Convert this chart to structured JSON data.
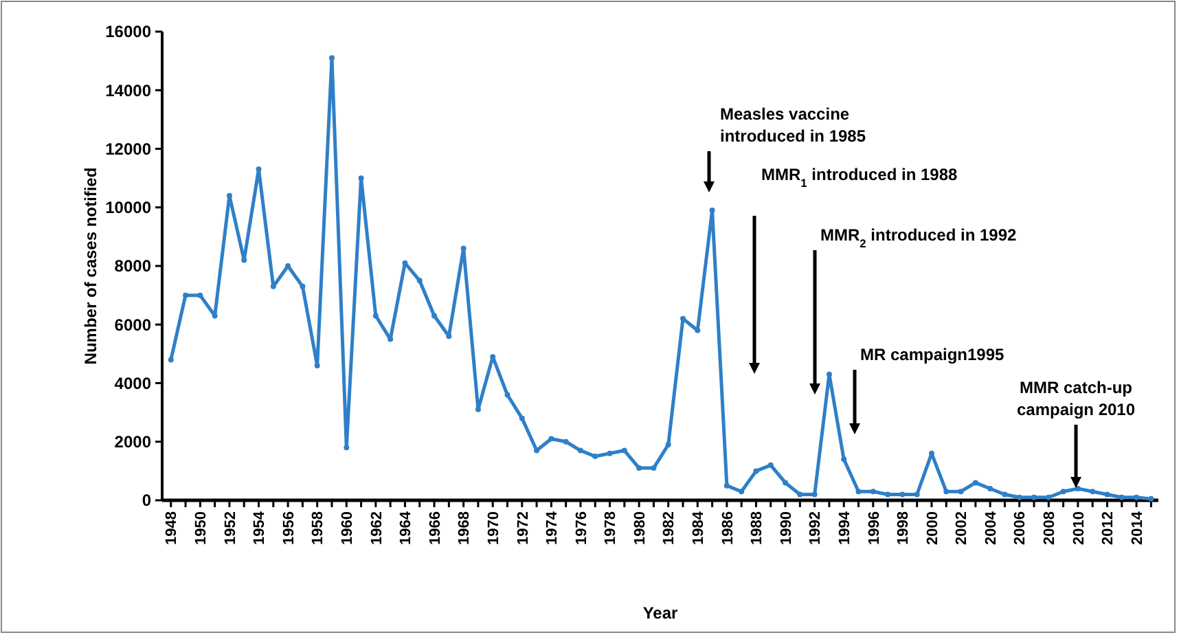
{
  "chart_data": {
    "type": "line",
    "xlabel": "Year",
    "ylabel": "Number of cases notified",
    "x": [
      1948,
      1949,
      1950,
      1951,
      1952,
      1953,
      1954,
      1955,
      1956,
      1957,
      1958,
      1959,
      1960,
      1961,
      1962,
      1963,
      1964,
      1965,
      1966,
      1967,
      1968,
      1969,
      1970,
      1971,
      1972,
      1973,
      1974,
      1975,
      1976,
      1977,
      1978,
      1979,
      1980,
      1981,
      1982,
      1983,
      1984,
      1985,
      1986,
      1987,
      1988,
      1989,
      1990,
      1991,
      1992,
      1993,
      1994,
      1995,
      1996,
      1997,
      1998,
      1999,
      2000,
      2001,
      2002,
      2003,
      2004,
      2005,
      2006,
      2007,
      2008,
      2009,
      2010,
      2011,
      2012,
      2013,
      2014,
      2015
    ],
    "series": [
      {
        "color": "#2f7fc8",
        "values": [
          4800,
          7000,
          7000,
          6300,
          10400,
          8200,
          11300,
          7300,
          8000,
          7300,
          4600,
          15100,
          1800,
          11000,
          6300,
          5500,
          8100,
          7500,
          6300,
          5600,
          8600,
          3100,
          4900,
          3600,
          2800,
          1700,
          2100,
          2000,
          1700,
          1500,
          1600,
          1700,
          1100,
          1100,
          1900,
          6200,
          5800,
          9900,
          500,
          300,
          1000,
          1200,
          600,
          200,
          200,
          4300,
          1400,
          300,
          300,
          200,
          200,
          200,
          1600,
          300,
          300,
          600,
          400,
          200,
          100,
          100,
          100,
          300,
          400,
          300,
          200,
          100,
          100,
          50
        ]
      }
    ],
    "xlim": [
      1947.4,
      2015.5
    ],
    "xticks": [
      1948,
      {
        "value": 1949,
        "label": null
      },
      1950,
      {
        "value": 1951,
        "label": null
      },
      1952,
      {
        "value": 1953,
        "label": null
      },
      1954,
      {
        "value": 1955,
        "label": null
      },
      1956,
      {
        "value": 1957,
        "label": null
      },
      1958,
      {
        "value": 1959,
        "label": null
      },
      1960,
      {
        "value": 1961,
        "label": null
      },
      1962,
      {
        "value": 1963,
        "label": null
      },
      1964,
      {
        "value": 1965,
        "label": null
      },
      1966,
      {
        "value": 1967,
        "label": null
      },
      1968,
      {
        "value": 1969,
        "label": null
      },
      1970,
      {
        "value": 1971,
        "label": null
      },
      1972,
      {
        "value": 1973,
        "label": null
      },
      1974,
      {
        "value": 1975,
        "label": null
      },
      1976,
      {
        "value": 1977,
        "label": null
      },
      1978,
      {
        "value": 1979,
        "label": null
      },
      1980,
      {
        "value": 1981,
        "label": null
      },
      1982,
      {
        "value": 1983,
        "label": null
      },
      1984,
      {
        "value": 1985,
        "label": null
      },
      1986,
      {
        "value": 1987,
        "label": null
      },
      1988,
      {
        "value": 1989,
        "label": null
      },
      1990,
      {
        "value": 1991,
        "label": null
      },
      1992,
      {
        "value": 1993,
        "label": null
      },
      1994,
      {
        "value": 1995,
        "label": null
      },
      1996,
      {
        "value": 1997,
        "label": null
      },
      1998,
      {
        "value": 1999,
        "label": null
      },
      2000,
      {
        "value": 2001,
        "label": null
      },
      2002,
      {
        "value": 2003,
        "label": null
      },
      2004,
      {
        "value": 2005,
        "label": null
      },
      2006,
      {
        "value": 2007,
        "label": null
      },
      2008,
      {
        "value": 2009,
        "label": null
      },
      2010,
      {
        "value": 2011,
        "label": null
      },
      2012,
      {
        "value": 2013,
        "label": null
      },
      2014,
      {
        "value": 2015,
        "label": null
      }
    ],
    "ylim": [
      0,
      16000
    ],
    "yticks": [
      0,
      2000,
      4000,
      6000,
      8000,
      10000,
      12000,
      14000,
      16000
    ],
    "grid": false,
    "marker": "circle",
    "line_style": "solid",
    "annotations": [
      "Measles vaccine introduced in 1985",
      "MMR$_{1}$ introduced in 1988",
      "MMR$_{2}$ introduced in 1992",
      "MR campaign1995",
      "MMR catch-up campaign 2010"
    ]
  }
}
